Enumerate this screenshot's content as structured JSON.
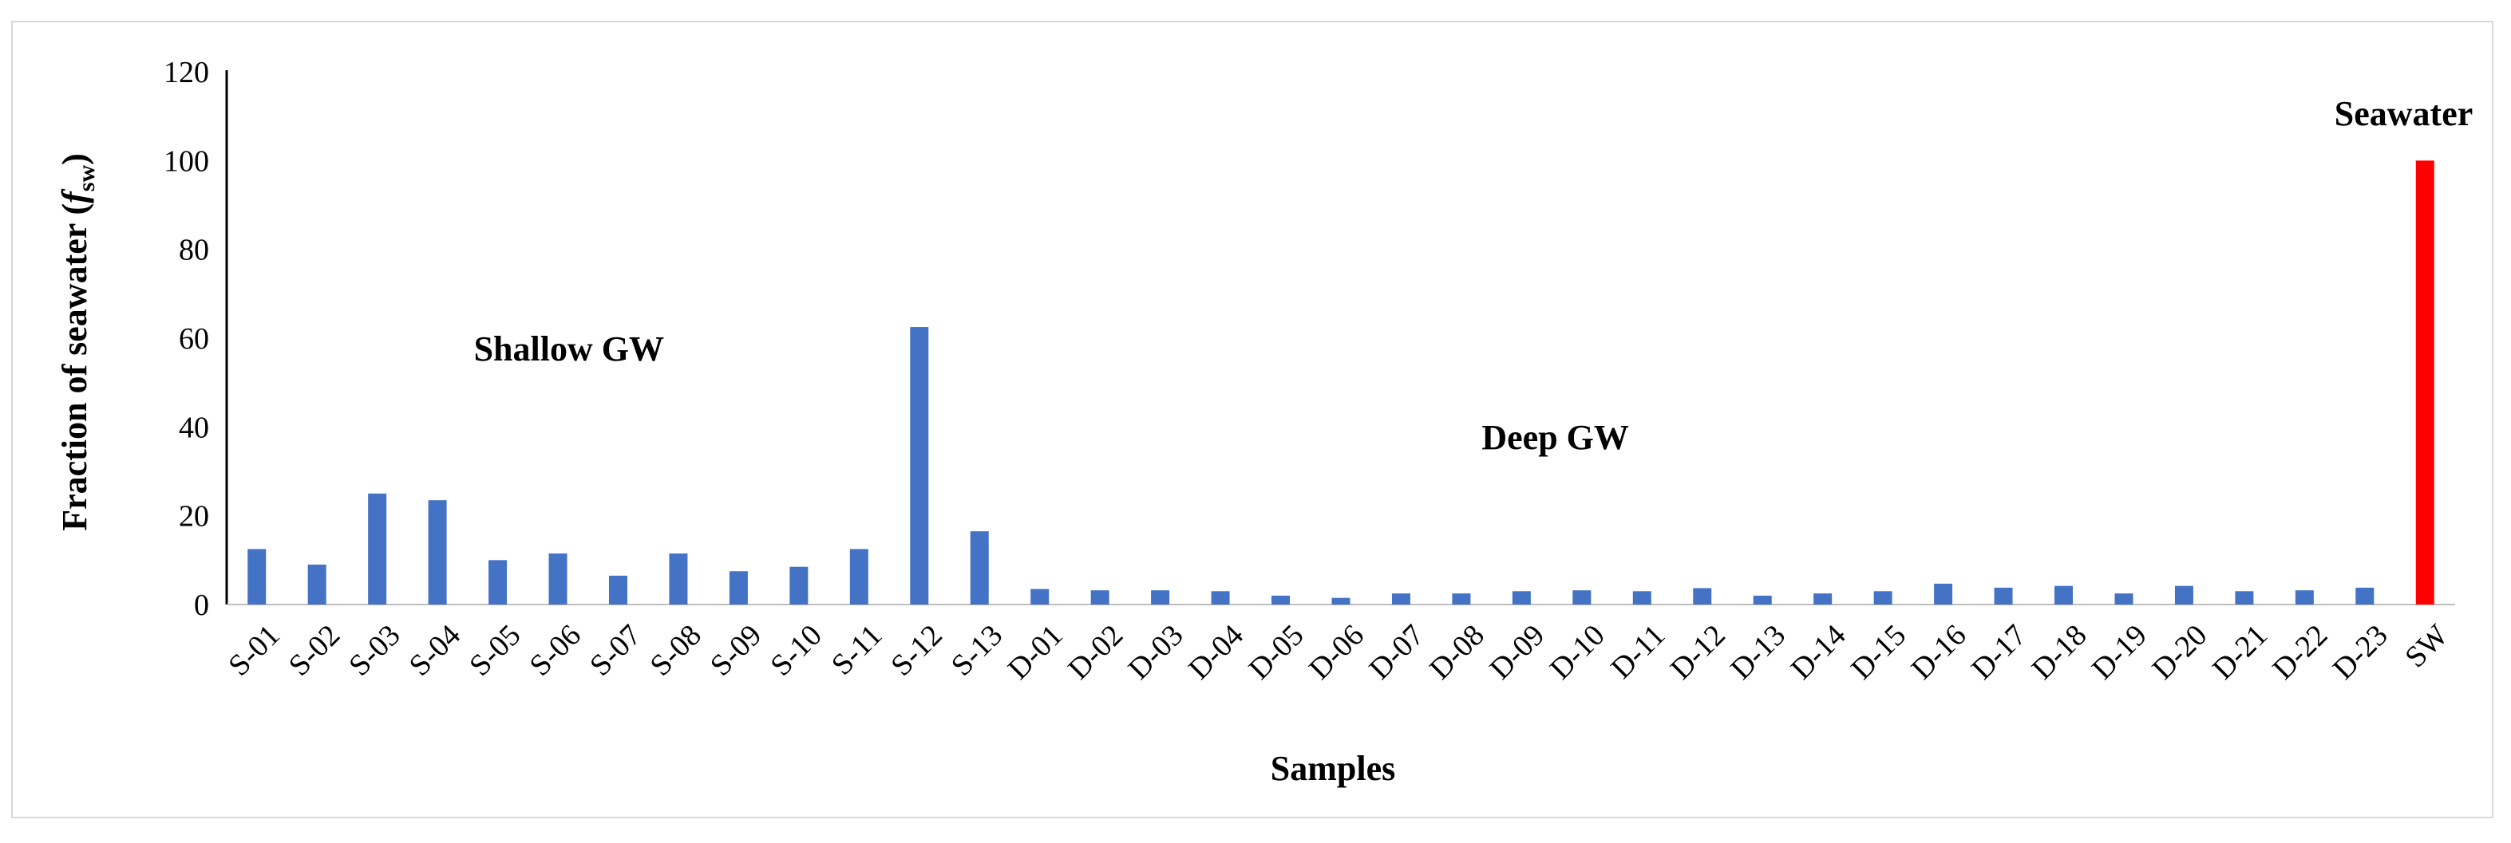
{
  "chart_data": {
    "type": "bar",
    "categories": [
      "S-01",
      "S-02",
      "S-03",
      "S-04",
      "S-05",
      "S-06",
      "S-07",
      "S-08",
      "S-09",
      "S-10",
      "S-11",
      "S-12",
      "S-13",
      "D-01",
      "D-02",
      "D-03",
      "D-04",
      "D-05",
      "D-06",
      "D-07",
      "D-08",
      "D-09",
      "D-10",
      "D-11",
      "D-12",
      "D-13",
      "D-14",
      "D-15",
      "D-16",
      "D-17",
      "D-18",
      "D-19",
      "D-20",
      "D-21",
      "D-22",
      "D-23",
      "SW"
    ],
    "values": [
      12.5,
      9,
      25,
      23.5,
      10,
      11.5,
      6.5,
      11.5,
      7.5,
      8.5,
      12.5,
      62.5,
      16.5,
      3.5,
      3.2,
      3.2,
      3,
      2,
      1.5,
      2.5,
      2.5,
      3,
      3.2,
      3,
      3.7,
      2,
      2.5,
      3,
      4.7,
      3.8,
      4.2,
      2.5,
      4.2,
      3,
      3.2,
      3.8,
      100
    ],
    "colors": {
      "default": "#4472c4",
      "SW": "#ff0000"
    },
    "xlabel": "Samples",
    "ylabel_main": "Fraction of seawater (",
    "ylabel_var": "f",
    "ylabel_sub": "sw",
    "ylabel_close": ")",
    "ylim": [
      0,
      120
    ],
    "yticks": [
      0,
      20,
      40,
      60,
      80,
      100,
      120
    ],
    "annotations": {
      "shallow": "Shallow GW",
      "deep": "Deep GW",
      "seawater": "Seawater"
    },
    "grid": false
  }
}
